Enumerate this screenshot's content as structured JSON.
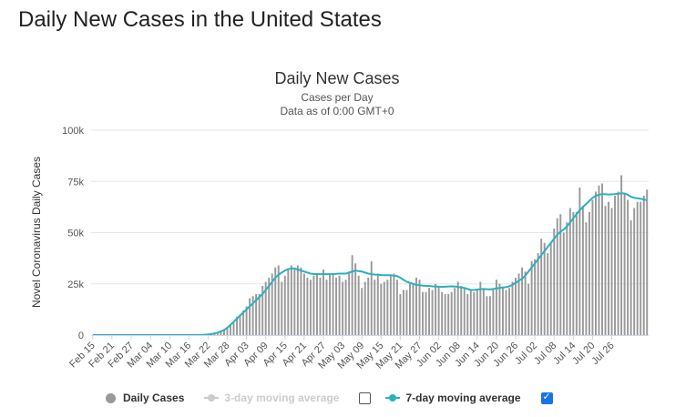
{
  "page": {
    "title": "Daily New Cases in the United States"
  },
  "chart_data": {
    "type": "bar",
    "title": "Daily New Cases",
    "subtitle": "Cases per Day",
    "subtitle2": "Data as of 0:00 GMT+0",
    "ylabel": "Novel Coronavirus Daily Cases",
    "ylim": [
      0,
      100000
    ],
    "yticks": [
      {
        "value": 0,
        "label": "0"
      },
      {
        "value": 25000,
        "label": "25k"
      },
      {
        "value": 50000,
        "label": "50k"
      },
      {
        "value": 75000,
        "label": "75k"
      },
      {
        "value": 100000,
        "label": "100k"
      }
    ],
    "x_tick_labels": [
      "Feb 15",
      "Feb 21",
      "Feb 27",
      "Mar 04",
      "Mar 10",
      "Mar 16",
      "Mar 22",
      "Mar 28",
      "Apr 03",
      "Apr 09",
      "Apr 15",
      "Apr 21",
      "Apr 27",
      "May 03",
      "May 09",
      "May 15",
      "May 21",
      "May 27",
      "Jun 02",
      "Jun 08",
      "Jun 14",
      "Jun 20",
      "Jun 26",
      "Jul 02",
      "Jul 08",
      "Jul 14",
      "Jul 20",
      "Jul 26"
    ],
    "grid": true,
    "legend_placement": "bottom",
    "colors": {
      "bars": "#999999",
      "ma7": "#2bb0c0",
      "ma3": "#cccccc"
    },
    "series": [
      {
        "name": "Daily Cases",
        "type": "bar",
        "values": [
          0,
          0,
          0,
          0,
          0,
          0,
          0,
          0,
          0,
          0,
          0,
          0,
          0,
          0,
          0,
          0,
          0,
          0,
          0,
          0,
          0,
          0,
          0,
          0,
          0,
          0,
          0,
          0,
          0,
          0,
          0,
          0,
          0,
          0,
          0,
          100,
          200,
          300,
          500,
          800,
          1500,
          2500,
          4000,
          5000,
          6000,
          9000,
          10000,
          12000,
          14000,
          18000,
          19000,
          20000,
          20000,
          24000,
          26000,
          28000,
          30000,
          33000,
          34000,
          26000,
          29000,
          32000,
          34000,
          32000,
          34000,
          33000,
          30000,
          28000,
          27000,
          29000,
          30000,
          28000,
          32000,
          27000,
          30000,
          30000,
          28000,
          29000,
          26000,
          27000,
          31000,
          39000,
          35000,
          29000,
          23000,
          26000,
          28000,
          36000,
          27000,
          30000,
          25000,
          26000,
          27000,
          29000,
          30000,
          27000,
          20000,
          22000,
          22000,
          25000,
          25000,
          28000,
          27000,
          21000,
          21000,
          23000,
          22000,
          25000,
          24000,
          21000,
          20000,
          20000,
          21000,
          23000,
          26000,
          24000,
          23000,
          20000,
          22000,
          21000,
          22000,
          26000,
          22000,
          19000,
          19000,
          22000,
          27000,
          25000,
          23000,
          22000,
          23000,
          26000,
          28000,
          30000,
          33000,
          31000,
          25000,
          36000,
          37000,
          40000,
          47000,
          45000,
          40000,
          45000,
          52000,
          57000,
          59000,
          50000,
          55000,
          62000,
          60000,
          60000,
          72000,
          63000,
          55000,
          60000,
          66000,
          70000,
          73000,
          74000,
          63000,
          65000,
          62000,
          68000,
          70000,
          78000,
          69000,
          66000,
          56000,
          62000,
          65000,
          65000,
          68000,
          71000
        ],
        "data_labels": []
      },
      {
        "name": "7-day moving average",
        "type": "line",
        "values": [
          0,
          0,
          0,
          0,
          0,
          0,
          0,
          0,
          0,
          0,
          0,
          0,
          0,
          0,
          0,
          0,
          0,
          0,
          0,
          0,
          0,
          0,
          0,
          0,
          0,
          0,
          0,
          0,
          0,
          0,
          0,
          0,
          0,
          0,
          0,
          200,
          300,
          500,
          800,
          1200,
          1800,
          2500,
          3500,
          5000,
          6500,
          8000,
          9500,
          11000,
          12500,
          14000,
          15500,
          17000,
          18500,
          20000,
          22000,
          24000,
          26000,
          28000,
          29500,
          30500,
          31500,
          32200,
          32500,
          32500,
          32000,
          31500,
          31000,
          30500,
          30000,
          29800,
          29800,
          29700,
          29800,
          29700,
          29700,
          29800,
          29900,
          30000,
          30000,
          30000,
          30500,
          31000,
          31500,
          31200,
          31000,
          30500,
          30000,
          29800,
          29500,
          29500,
          29300,
          29200,
          29200,
          29200,
          29000,
          28800,
          28000,
          27000,
          26000,
          25500,
          25000,
          24500,
          24300,
          24100,
          24000,
          24000,
          23800,
          23700,
          23600,
          23500,
          23600,
          23700,
          23800,
          23700,
          23500,
          23200,
          23000,
          22500,
          22000,
          22000,
          22200,
          22400,
          22500,
          22400,
          22300,
          22500,
          22800,
          23000,
          23200,
          23400,
          23800,
          24500,
          25500,
          26500,
          27500,
          29000,
          31000,
          33000,
          35000,
          37000,
          39000,
          41000,
          43000,
          45000,
          47000,
          49000,
          50500,
          51500,
          53000,
          55000,
          57000,
          59000,
          61000,
          62500,
          64000,
          65500,
          67000,
          68000,
          68500,
          68800,
          68700,
          68600,
          68700,
          68800,
          69000,
          69200,
          69100,
          68500,
          67500,
          67000,
          66800,
          66500,
          66200,
          65800
        ]
      }
    ]
  },
  "legend": {
    "daily": "Daily Cases",
    "ma3": "3-day moving average",
    "ma7": "7-day moving average",
    "ma3_checked": false,
    "ma7_checked": true
  }
}
